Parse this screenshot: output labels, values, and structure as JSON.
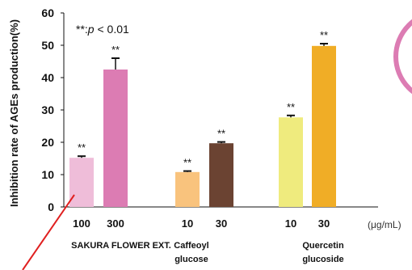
{
  "chart_data": {
    "type": "bar",
    "ylabel": "Inhibition rate of AGEs production(%)",
    "ylim": [
      0,
      60
    ],
    "yticks": [
      0,
      10,
      20,
      30,
      40,
      50,
      60
    ],
    "grid": false,
    "unit_label": "(μg/mL)",
    "note": {
      "stars": "**",
      "sep": ":",
      "p": "p",
      "rest": " < 0.01"
    },
    "significance_mark": "**",
    "groups": [
      {
        "label_lines": [
          "SAKURA FLOWER EXT."
        ],
        "doses": [
          "100",
          "300"
        ]
      },
      {
        "label_lines": [
          "Caffeoyl",
          "glucose"
        ],
        "doses": [
          "10",
          "30"
        ]
      },
      {
        "label_lines": [
          "Quercetin",
          "glucoside"
        ],
        "doses": [
          "10",
          "30"
        ]
      }
    ],
    "bars": [
      {
        "group": 0,
        "dose": "100",
        "value": 15.2,
        "error": 0.5,
        "color": "#efbdd9"
      },
      {
        "group": 0,
        "dose": "300",
        "value": 42.5,
        "error": 3.5,
        "color": "#dc7cb3"
      },
      {
        "group": 1,
        "dose": "10",
        "value": 10.8,
        "error": 0.3,
        "color": "#f9c37d"
      },
      {
        "group": 1,
        "dose": "30",
        "value": 19.7,
        "error": 0.4,
        "color": "#6b4332"
      },
      {
        "group": 2,
        "dose": "10",
        "value": 27.7,
        "error": 0.6,
        "color": "#efeb7e"
      },
      {
        "group": 2,
        "dose": "30",
        "value": 49.8,
        "error": 0.7,
        "color": "#f0ad26"
      }
    ]
  },
  "colors": {
    "axis": "#111111",
    "error_bar": "#111111",
    "pointer_line": "#e02020",
    "decor_ring": "#dc7cb3"
  },
  "icons": [
    "pointer-line",
    "decor-ring"
  ]
}
